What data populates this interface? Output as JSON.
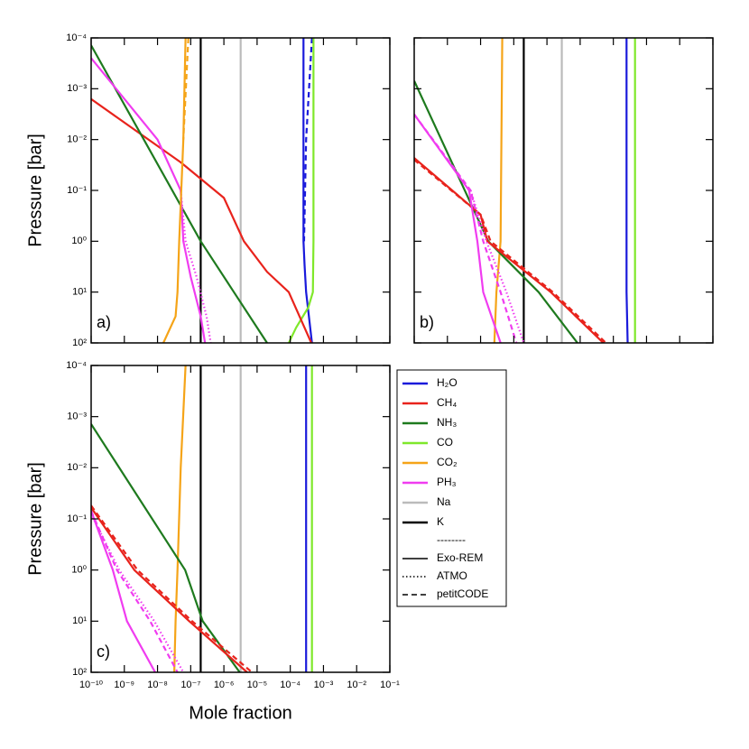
{
  "chart_data": [
    {
      "type": "line",
      "panel_label": "a)",
      "xscale": "log",
      "yscale": "log",
      "yinvert": true,
      "xlim": [
        1e-10,
        0.1
      ],
      "ylim": [
        0.0001,
        100
      ],
      "xticks": [
        1e-10,
        1e-09,
        1e-08,
        1e-07,
        1e-06,
        1e-05,
        0.0001,
        0.001,
        0.01,
        0.1
      ],
      "yticks": [
        {
          "value": 0.0001,
          "label": "10⁻⁴"
        },
        {
          "value": 0.001,
          "label": "10⁻³"
        },
        {
          "value": 0.01,
          "label": "10⁻²"
        },
        {
          "value": 0.1,
          "label": "10⁻¹"
        },
        {
          "value": 1,
          "label": "10⁰"
        },
        {
          "value": 10,
          "label": "10¹"
        },
        {
          "value": 100,
          "label": "10²"
        }
      ],
      "ylabel": "Pressure [bar]",
      "series": [
        {
          "color": "#bbbbbb",
          "dash": "solid",
          "x": [
            3.2e-06,
            3.2e-06
          ],
          "y": [
            0.0001,
            100
          ]
        },
        {
          "color": "#000000",
          "dash": "solid",
          "x": [
            2e-07,
            2e-07
          ],
          "y": [
            0.0001,
            100
          ]
        },
        {
          "color": "#1a1adb",
          "dash": "solid",
          "x": [
            0.00025,
            0.00025,
            0.00025,
            0.00027,
            0.0003,
            0.00045
          ],
          "y": [
            0.0001,
            0.01,
            1,
            3,
            10,
            100
          ]
        },
        {
          "color": "#1a1adb",
          "dash": "dashed",
          "x": [
            0.00045,
            0.0003,
            0.00026
          ],
          "y": [
            0.0001,
            0.01,
            1
          ]
        },
        {
          "color": "#7fe82a",
          "dash": "solid",
          "x": [
            0.0005,
            0.0005,
            0.00048,
            0.00035,
            0.00015,
            9e-05
          ],
          "y": [
            0.0001,
            1,
            10,
            20,
            50,
            100
          ]
        },
        {
          "color": "#e8231c",
          "dash": "solid",
          "x": [
            1e-10,
            5e-08,
            1e-06,
            4e-06,
            2e-05,
            9e-05,
            0.00043
          ],
          "y": [
            0.0016,
            0.028,
            0.14,
            1,
            4,
            10,
            100
          ]
        },
        {
          "color": "#1e7a1e",
          "dash": "solid",
          "x": [
            1e-10,
            2e-07,
            2e-06,
            2e-05
          ],
          "y": [
            0.00014,
            1,
            10,
            100
          ]
        },
        {
          "color": "#f03cf0",
          "dash": "solid",
          "x": [
            1e-10,
            1e-08,
            5e-08,
            6e-08,
            1e-07,
            2e-07,
            2.7e-07
          ],
          "y": [
            0.00025,
            0.01,
            0.1,
            1,
            5,
            30,
            100
          ]
        },
        {
          "color": "#f03cf0",
          "dash": "dotted",
          "x": [
            5e-08,
            7e-08,
            1.5e-07,
            3e-07,
            4e-07
          ],
          "y": [
            0.1,
            1,
            5,
            30,
            100
          ]
        },
        {
          "color": "#f5a418",
          "dash": "solid",
          "x": [
            7e-08,
            6e-08,
            4.5e-08,
            4e-08,
            3.5e-08,
            1.5e-08
          ],
          "y": [
            0.0001,
            0.01,
            1,
            10,
            30,
            100
          ]
        },
        {
          "color": "#f5a418",
          "dash": "dashed",
          "x": [
            8.5e-08,
            6e-08
          ],
          "y": [
            0.0001,
            0.01
          ]
        }
      ]
    },
    {
      "type": "line",
      "panel_label": "b)",
      "xscale": "log",
      "yscale": "log",
      "yinvert": true,
      "xlim": [
        1e-10,
        0.1
      ],
      "ylim": [
        0.0001,
        100
      ],
      "xticks": [
        1e-10,
        1e-09,
        1e-08,
        1e-07,
        1e-06,
        1e-05,
        0.0001,
        0.001,
        0.01,
        0.1
      ],
      "yticks": [
        0.0001,
        0.001,
        0.01,
        0.1,
        1,
        10,
        100
      ],
      "series": [
        {
          "color": "#bbbbbb",
          "dash": "solid",
          "x": [
            2.8e-06,
            2.8e-06
          ],
          "y": [
            0.0001,
            100
          ]
        },
        {
          "color": "#000000",
          "dash": "solid",
          "x": [
            2e-07,
            2e-07
          ],
          "y": [
            0.0001,
            100
          ]
        },
        {
          "color": "#1a1adb",
          "dash": "solid",
          "x": [
            0.00025,
            0.00025,
            0.00027
          ],
          "y": [
            0.0001,
            10,
            100
          ]
        },
        {
          "color": "#7fe82a",
          "dash": "solid",
          "x": [
            0.00045,
            0.00045
          ],
          "y": [
            0.0001,
            100
          ]
        },
        {
          "color": "#f5a418",
          "dash": "solid",
          "x": [
            4.5e-08,
            4e-08,
            3e-08,
            2.6e-08
          ],
          "y": [
            0.0001,
            1,
            10,
            100
          ]
        },
        {
          "color": "#1e7a1e",
          "dash": "solid",
          "x": [
            1e-10,
            1.7e-08,
            5.6e-07,
            8.3e-06
          ],
          "y": [
            0.0007,
            1,
            10,
            100
          ]
        },
        {
          "color": "#e8231c",
          "dash": "solid",
          "x": [
            1e-10,
            1e-08,
            1.6e-08,
            1.3e-06,
            5e-05
          ],
          "y": [
            0.023,
            0.3,
            1,
            10,
            100
          ]
        },
        {
          "color": "#e8231c",
          "dash": "dashed",
          "x": [
            1e-10,
            1e-08,
            2e-08,
            1.5e-06,
            6e-05
          ],
          "y": [
            0.025,
            0.3,
            1,
            10,
            100
          ]
        },
        {
          "color": "#f03cf0",
          "dash": "solid",
          "x": [
            1e-10,
            4.5e-09,
            8e-09,
            1.2e-08,
            4e-08
          ],
          "y": [
            0.0032,
            0.1,
            1,
            10,
            100
          ]
        },
        {
          "color": "#f03cf0",
          "dash": "dashed",
          "x": [
            1e-10,
            5e-09,
            1.2e-08,
            4e-08,
            1.2e-07
          ],
          "y": [
            0.0032,
            0.1,
            1,
            10,
            100
          ]
        },
        {
          "color": "#f03cf0",
          "dash": "dotted",
          "x": [
            5e-09,
            1.5e-08,
            6e-08,
            2e-07
          ],
          "y": [
            0.1,
            1,
            10,
            100
          ]
        }
      ]
    },
    {
      "type": "line",
      "panel_label": "c)",
      "xscale": "log",
      "yscale": "log",
      "yinvert": true,
      "xlim": [
        1e-10,
        0.1
      ],
      "ylim": [
        0.0001,
        100
      ],
      "xticks": [
        {
          "value": 1e-10,
          "label": "10⁻¹⁰"
        },
        {
          "value": 1e-09,
          "label": "10⁻⁹"
        },
        {
          "value": 1e-08,
          "label": "10⁻⁸"
        },
        {
          "value": 1e-07,
          "label": "10⁻⁷"
        },
        {
          "value": 1e-06,
          "label": "10⁻⁶"
        },
        {
          "value": 1e-05,
          "label": "10⁻⁵"
        },
        {
          "value": 0.0001,
          "label": "10⁻⁴"
        },
        {
          "value": 0.001,
          "label": "10⁻³"
        },
        {
          "value": 0.01,
          "label": "10⁻²"
        },
        {
          "value": 0.1,
          "label": "10⁻¹"
        }
      ],
      "yticks": [
        {
          "value": 0.0001,
          "label": "10⁻⁴"
        },
        {
          "value": 0.001,
          "label": "10⁻³"
        },
        {
          "value": 0.01,
          "label": "10⁻²"
        },
        {
          "value": 0.1,
          "label": "10⁻¹"
        },
        {
          "value": 1,
          "label": "10⁰"
        },
        {
          "value": 10,
          "label": "10¹"
        },
        {
          "value": 100,
          "label": "10²"
        }
      ],
      "xlabel": "Mole fraction",
      "ylabel": "Pressure [bar]",
      "series": [
        {
          "color": "#bbbbbb",
          "dash": "solid",
          "x": [
            3.2e-06,
            3.2e-06
          ],
          "y": [
            0.0001,
            100
          ]
        },
        {
          "color": "#000000",
          "dash": "solid",
          "x": [
            2e-07,
            2e-07
          ],
          "y": [
            0.0001,
            100
          ]
        },
        {
          "color": "#1a1adb",
          "dash": "solid",
          "x": [
            0.0003,
            0.0003
          ],
          "y": [
            0.0001,
            100
          ]
        },
        {
          "color": "#7fe82a",
          "dash": "solid",
          "x": [
            0.00045,
            0.00045
          ],
          "y": [
            0.0001,
            100
          ]
        },
        {
          "color": "#f5a418",
          "dash": "solid",
          "x": [
            7e-08,
            5e-08,
            4e-08,
            3.5e-08,
            3.2e-08
          ],
          "y": [
            0.0001,
            0.01,
            1,
            10,
            100
          ]
        },
        {
          "color": "#1e7a1e",
          "dash": "solid",
          "x": [
            1e-10,
            6.8e-08,
            2.3e-07,
            3e-06
          ],
          "y": [
            0.0014,
            1,
            10,
            100
          ]
        },
        {
          "color": "#e8231c",
          "dash": "solid",
          "x": [
            1e-10,
            2e-09,
            9e-08,
            5e-06
          ],
          "y": [
            0.06,
            1,
            10,
            100
          ]
        },
        {
          "color": "#e8231c",
          "dash": "dashed",
          "x": [
            1e-10,
            2.5e-09,
            1.1e-07,
            7e-06
          ],
          "y": [
            0.055,
            1,
            10,
            100
          ]
        },
        {
          "color": "#f03cf0",
          "dash": "solid",
          "x": [
            1e-10,
            4.5e-10,
            1.2e-09,
            8.5e-09
          ],
          "y": [
            0.07,
            1,
            10,
            100
          ]
        },
        {
          "color": "#f03cf0",
          "dash": "dashed",
          "x": [
            1e-10,
            6e-10,
            6e-09,
            4e-08
          ],
          "y": [
            0.07,
            1,
            10,
            100
          ]
        },
        {
          "color": "#f03cf0",
          "dash": "dotted",
          "x": [
            1e-10,
            7e-10,
            8e-09,
            6e-08
          ],
          "y": [
            0.08,
            1,
            10,
            100
          ]
        }
      ]
    }
  ],
  "legend": {
    "species": [
      {
        "name": "H₂O",
        "color": "#1a1adb"
      },
      {
        "name": "CH₄",
        "color": "#e8231c"
      },
      {
        "name": "NH₃",
        "color": "#1e7a1e"
      },
      {
        "name": "CO",
        "color": "#7fe82a"
      },
      {
        "name": "CO₂",
        "color": "#f5a418"
      },
      {
        "name": "PH₃",
        "color": "#f03cf0"
      },
      {
        "name": "Na",
        "color": "#bbbbbb"
      },
      {
        "name": "K",
        "color": "#000000"
      }
    ],
    "separator": "--------",
    "models": [
      {
        "name": "Exo-REM",
        "dash": "solid"
      },
      {
        "name": "ATMO",
        "dash": "dotted"
      },
      {
        "name": "petitCODE",
        "dash": "dashed"
      }
    ]
  }
}
